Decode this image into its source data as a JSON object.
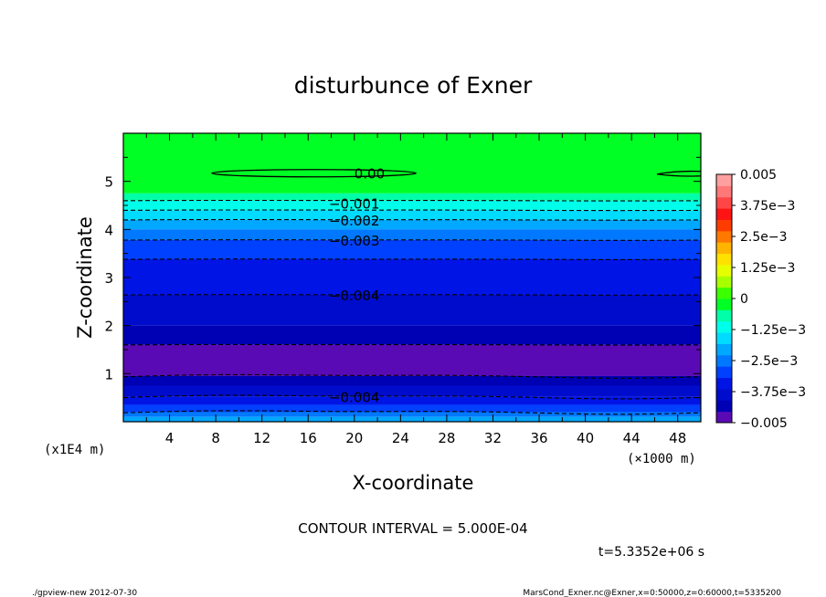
{
  "chart_data": {
    "type": "heatmap",
    "title": "disturbunce of Exner",
    "xlabel": "X-coordinate",
    "ylabel": "Z-coordinate",
    "x_unit": "(×1000 m)",
    "y_unit": "(x1E4 m)",
    "xlim": [
      0,
      50
    ],
    "ylim": [
      0,
      6
    ],
    "x_ticks": [
      "4",
      "8",
      "12",
      "16",
      "20",
      "24",
      "28",
      "32",
      "36",
      "40",
      "44",
      "48"
    ],
    "y_ticks": [
      "1",
      "2",
      "3",
      "4",
      "5"
    ],
    "contour_labels": [
      {
        "text": "0.00",
        "x": 20.0,
        "z": 5.17
      },
      {
        "text": "−0.001",
        "x": 17.8,
        "z": 4.55
      },
      {
        "text": "−0.002",
        "x": 17.8,
        "z": 4.2
      },
      {
        "text": "−0.003",
        "x": 17.8,
        "z": 3.78
      },
      {
        "text": "−0.004",
        "x": 17.8,
        "z": 2.64
      },
      {
        "text": "−0.004",
        "x": 17.8,
        "z": 0.52
      }
    ],
    "dashed_contours_z": [
      4.6,
      4.4,
      4.2,
      3.78,
      3.38,
      2.64,
      1.6,
      0.95,
      0.52,
      0.2
    ],
    "bands": [
      {
        "z0": 4.75,
        "z1": 6.0,
        "color": "#00ff24"
      },
      {
        "z0": 4.6,
        "z1": 4.75,
        "color": "#00ffa8"
      },
      {
        "z0": 4.4,
        "z1": 4.6,
        "color": "#00ffea"
      },
      {
        "z0": 4.2,
        "z1": 4.4,
        "color": "#00dcff"
      },
      {
        "z0": 4.0,
        "z1": 4.2,
        "color": "#00a8ff"
      },
      {
        "z0": 3.78,
        "z1": 4.0,
        "color": "#0078ff"
      },
      {
        "z0": 3.38,
        "z1": 3.78,
        "color": "#0040ff"
      },
      {
        "z0": 2.64,
        "z1": 3.38,
        "color": "#0014e6"
      },
      {
        "z0": 2.0,
        "z1": 2.64,
        "color": "#000ccc"
      },
      {
        "z0": 1.6,
        "z1": 2.0,
        "color": "#0000b4"
      },
      {
        "z0": 0.95,
        "z1": 1.6,
        "color": "#5a0ab4"
      },
      {
        "z0": 0.75,
        "z1": 0.95,
        "color": "#0000b4"
      },
      {
        "z0": 0.52,
        "z1": 0.75,
        "color": "#000ccc"
      },
      {
        "z0": 0.35,
        "z1": 0.52,
        "color": "#0014e6"
      },
      {
        "z0": 0.2,
        "z1": 0.35,
        "color": "#0040ff"
      },
      {
        "z0": 0.1,
        "z1": 0.2,
        "color": "#0078ff"
      },
      {
        "z0": 0.0,
        "z1": 0.1,
        "color": "#00a8ff"
      }
    ],
    "colorbar": {
      "range": [
        -0.005,
        0.005
      ],
      "tick_labels": [
        "0.005",
        "3.75e−3",
        "2.5e−3",
        "1.25e−3",
        "0",
        "−1.25e−3",
        "−2.5e−3",
        "−3.75e−3",
        "−0.005"
      ],
      "colors": [
        "#5a0ab4",
        "#0000b4",
        "#000ccc",
        "#0014e6",
        "#0040ff",
        "#0078ff",
        "#00a8ff",
        "#00dcff",
        "#00ffea",
        "#00ffa8",
        "#00ff24",
        "#3cff00",
        "#a8ff00",
        "#e6ff00",
        "#ffe100",
        "#ffb400",
        "#ff7800",
        "#ff3c00",
        "#ff1414",
        "#ff4646",
        "#ff7878",
        "#ffa0a0"
      ]
    }
  },
  "contour_interval": "CONTOUR INTERVAL = 5.000E-04",
  "time_label": "t=5.3352e+06 s",
  "footer_left": "./gpview-new   2012-07-30",
  "footer_right": "MarsCond_Exner.nc@Exner,x=0:50000,z=0:60000,t=5335200"
}
